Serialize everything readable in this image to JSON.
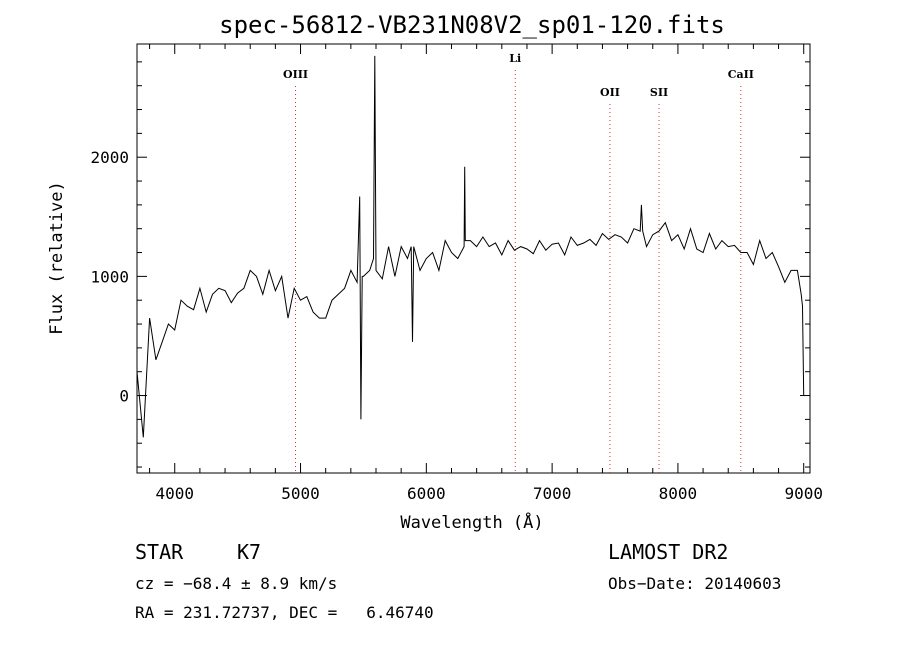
{
  "chart_data": {
    "type": "line",
    "title": "spec-56812-VB231N08V2_sp01-120.fits",
    "xlabel": "Wavelength (Å)",
    "ylabel": "Flux (relative)",
    "xlim": [
      3700,
      9050
    ],
    "ylim": [
      -650,
      2950
    ],
    "xticks": [
      4000,
      5000,
      6000,
      7000,
      8000,
      9000
    ],
    "yticks": [
      0,
      1000,
      2000
    ],
    "line_color": "#000000",
    "marker_color": "#e03030",
    "grid": false,
    "legend": "none",
    "series": [
      {
        "x": [
          3700,
          3750,
          3800,
          3850,
          3900,
          3950,
          4000,
          4050,
          4100,
          4150,
          4200,
          4250,
          4300,
          4350,
          4400,
          4450,
          4500,
          4550,
          4600,
          4650,
          4700,
          4750,
          4800,
          4850,
          4900,
          4950,
          5000,
          5050,
          5100,
          5150,
          5200,
          5250,
          5300,
          5350,
          5400,
          5450,
          5470,
          5480,
          5490,
          5500,
          5550,
          5580,
          5590,
          5600,
          5650,
          5700,
          5750,
          5800,
          5850,
          5880,
          5890,
          5900,
          5950,
          6000,
          6050,
          6100,
          6150,
          6200,
          6250,
          6300,
          6305,
          6310,
          6350,
          6400,
          6450,
          6500,
          6550,
          6600,
          6650,
          6700,
          6750,
          6800,
          6850,
          6900,
          6950,
          7000,
          7050,
          7100,
          7150,
          7200,
          7250,
          7300,
          7350,
          7400,
          7450,
          7500,
          7550,
          7600,
          7650,
          7700,
          7710,
          7720,
          7750,
          7800,
          7850,
          7900,
          7950,
          8000,
          8050,
          8100,
          8150,
          8200,
          8250,
          8300,
          8350,
          8400,
          8450,
          8500,
          8550,
          8600,
          8650,
          8700,
          8750,
          8800,
          8850,
          8900,
          8950,
          8980,
          8990,
          9000
        ],
        "y": [
          200,
          -350,
          650,
          300,
          450,
          600,
          550,
          800,
          750,
          720,
          900,
          700,
          850,
          900,
          880,
          780,
          860,
          900,
          1050,
          1000,
          850,
          1050,
          880,
          1000,
          650,
          900,
          800,
          830,
          700,
          650,
          650,
          800,
          850,
          900,
          1050,
          950,
          1670,
          -200,
          1000,
          1000,
          1050,
          1150,
          2850,
          1050,
          980,
          1250,
          1000,
          1250,
          1150,
          1250,
          450,
          1250,
          1050,
          1150,
          1200,
          1050,
          1300,
          1200,
          1150,
          1250,
          1920,
          1300,
          1300,
          1250,
          1330,
          1250,
          1280,
          1180,
          1300,
          1220,
          1250,
          1230,
          1190,
          1300,
          1220,
          1270,
          1280,
          1180,
          1330,
          1260,
          1280,
          1310,
          1260,
          1360,
          1310,
          1350,
          1330,
          1280,
          1400,
          1380,
          1600,
          1380,
          1250,
          1350,
          1380,
          1450,
          1300,
          1350,
          1230,
          1400,
          1230,
          1200,
          1360,
          1230,
          1300,
          1250,
          1260,
          1200,
          1200,
          1100,
          1300,
          1150,
          1200,
          1080,
          950,
          1050,
          1050,
          850,
          750,
          0
        ]
      }
    ],
    "annotations": [
      {
        "label": "OIII",
        "x": 4960,
        "row": "mid"
      },
      {
        "label": "Li",
        "x": 6707,
        "row": "top"
      },
      {
        "label": "OII",
        "x": 7460,
        "row": "low"
      },
      {
        "label": "SII",
        "x": 7850,
        "row": "low"
      },
      {
        "label": "CaII",
        "x": 8500,
        "row": "mid"
      }
    ]
  },
  "info": {
    "object_class": "STAR",
    "subclass": "K7",
    "survey": "LAMOST DR2",
    "cz": "cz = −68.4 ± 8.9 km/s",
    "obs_date": "Obs−Date: 20140603",
    "coords": "RA = 231.72737, DEC =   6.46740"
  }
}
